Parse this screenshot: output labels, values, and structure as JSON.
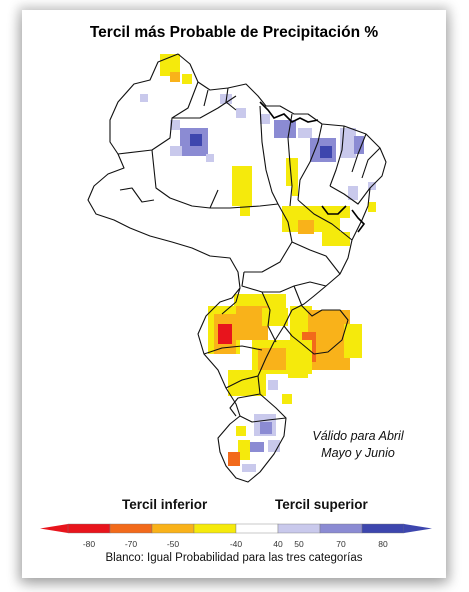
{
  "title": "Tercil más Probable de Precipitación %",
  "validity": [
    "Válido para Abril",
    "Mayo y Junio"
  ],
  "legend": {
    "lower_label": "Tercil  inferior",
    "upper_label": "Tercil  superior",
    "ticks": [
      "-80",
      "-70",
      "-50",
      "-40",
      "40",
      "50",
      "70",
      "80"
    ],
    "colors": [
      "#e8141c",
      "#f26a1b",
      "#f9b21a",
      "#f5ea0c",
      "#ffffff",
      "#c9c9ec",
      "#8b8bd3",
      "#3d46ae"
    ],
    "footnote": "Blanco: Igual Probabilidad para las tres categorías"
  }
}
